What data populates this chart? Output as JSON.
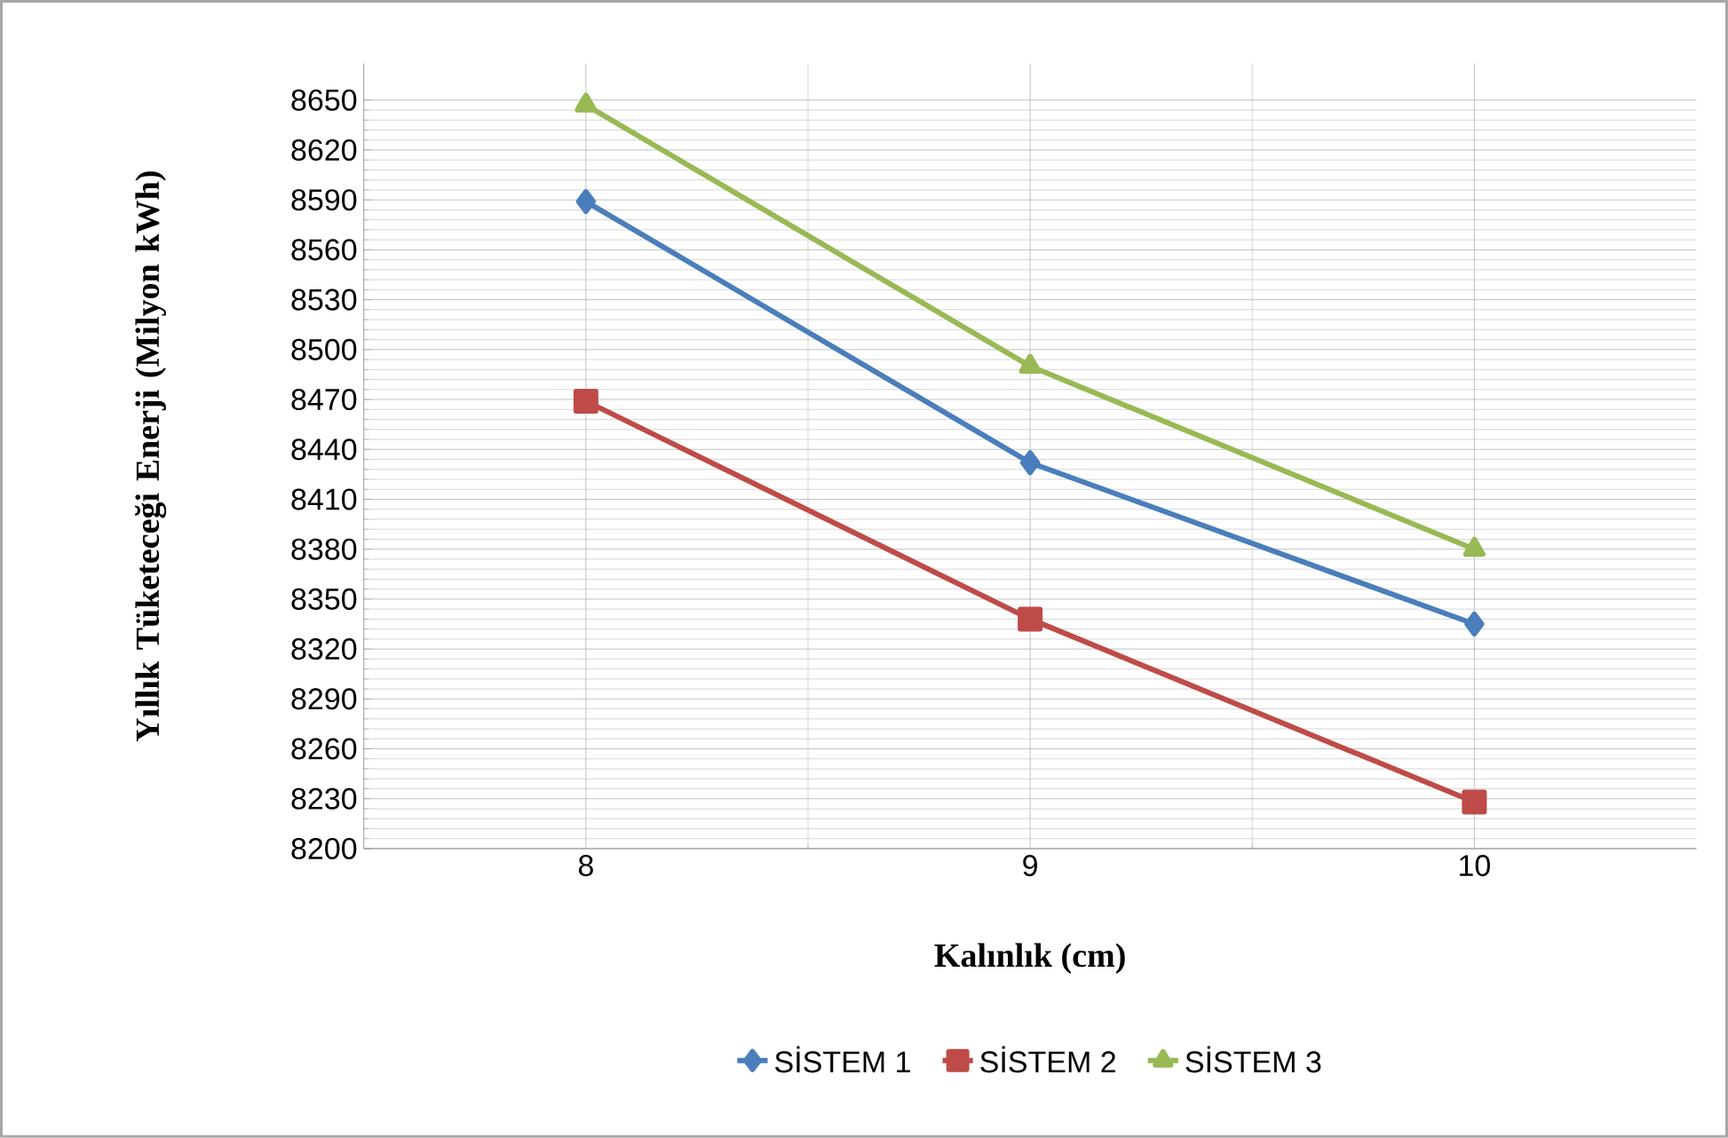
{
  "chart_data": {
    "type": "line",
    "xlabel": "Kalınlık (cm)",
    "ylabel": "Yıllık  Tüketeceği Enerji (Milyon kWh)",
    "categories": [
      "8",
      "9",
      "10"
    ],
    "series": [
      {
        "name": "SİSTEM 1",
        "color": "#4a7ebb",
        "marker": "diamond",
        "values": [
          8589,
          8432,
          8335
        ]
      },
      {
        "name": "SİSTEM 2",
        "color": "#be4b48",
        "marker": "square",
        "values": [
          8469,
          8338,
          8228
        ]
      },
      {
        "name": "SİSTEM 3",
        "color": "#98b954",
        "marker": "triangle",
        "values": [
          8647,
          8490,
          8380
        ]
      }
    ],
    "ylim": [
      8200,
      8672
    ],
    "yticks": [
      8200,
      8230,
      8260,
      8290,
      8320,
      8350,
      8380,
      8410,
      8440,
      8470,
      8500,
      8530,
      8560,
      8590,
      8620,
      8650
    ],
    "grid": true,
    "legend": "bottom",
    "line_style": "solid"
  }
}
